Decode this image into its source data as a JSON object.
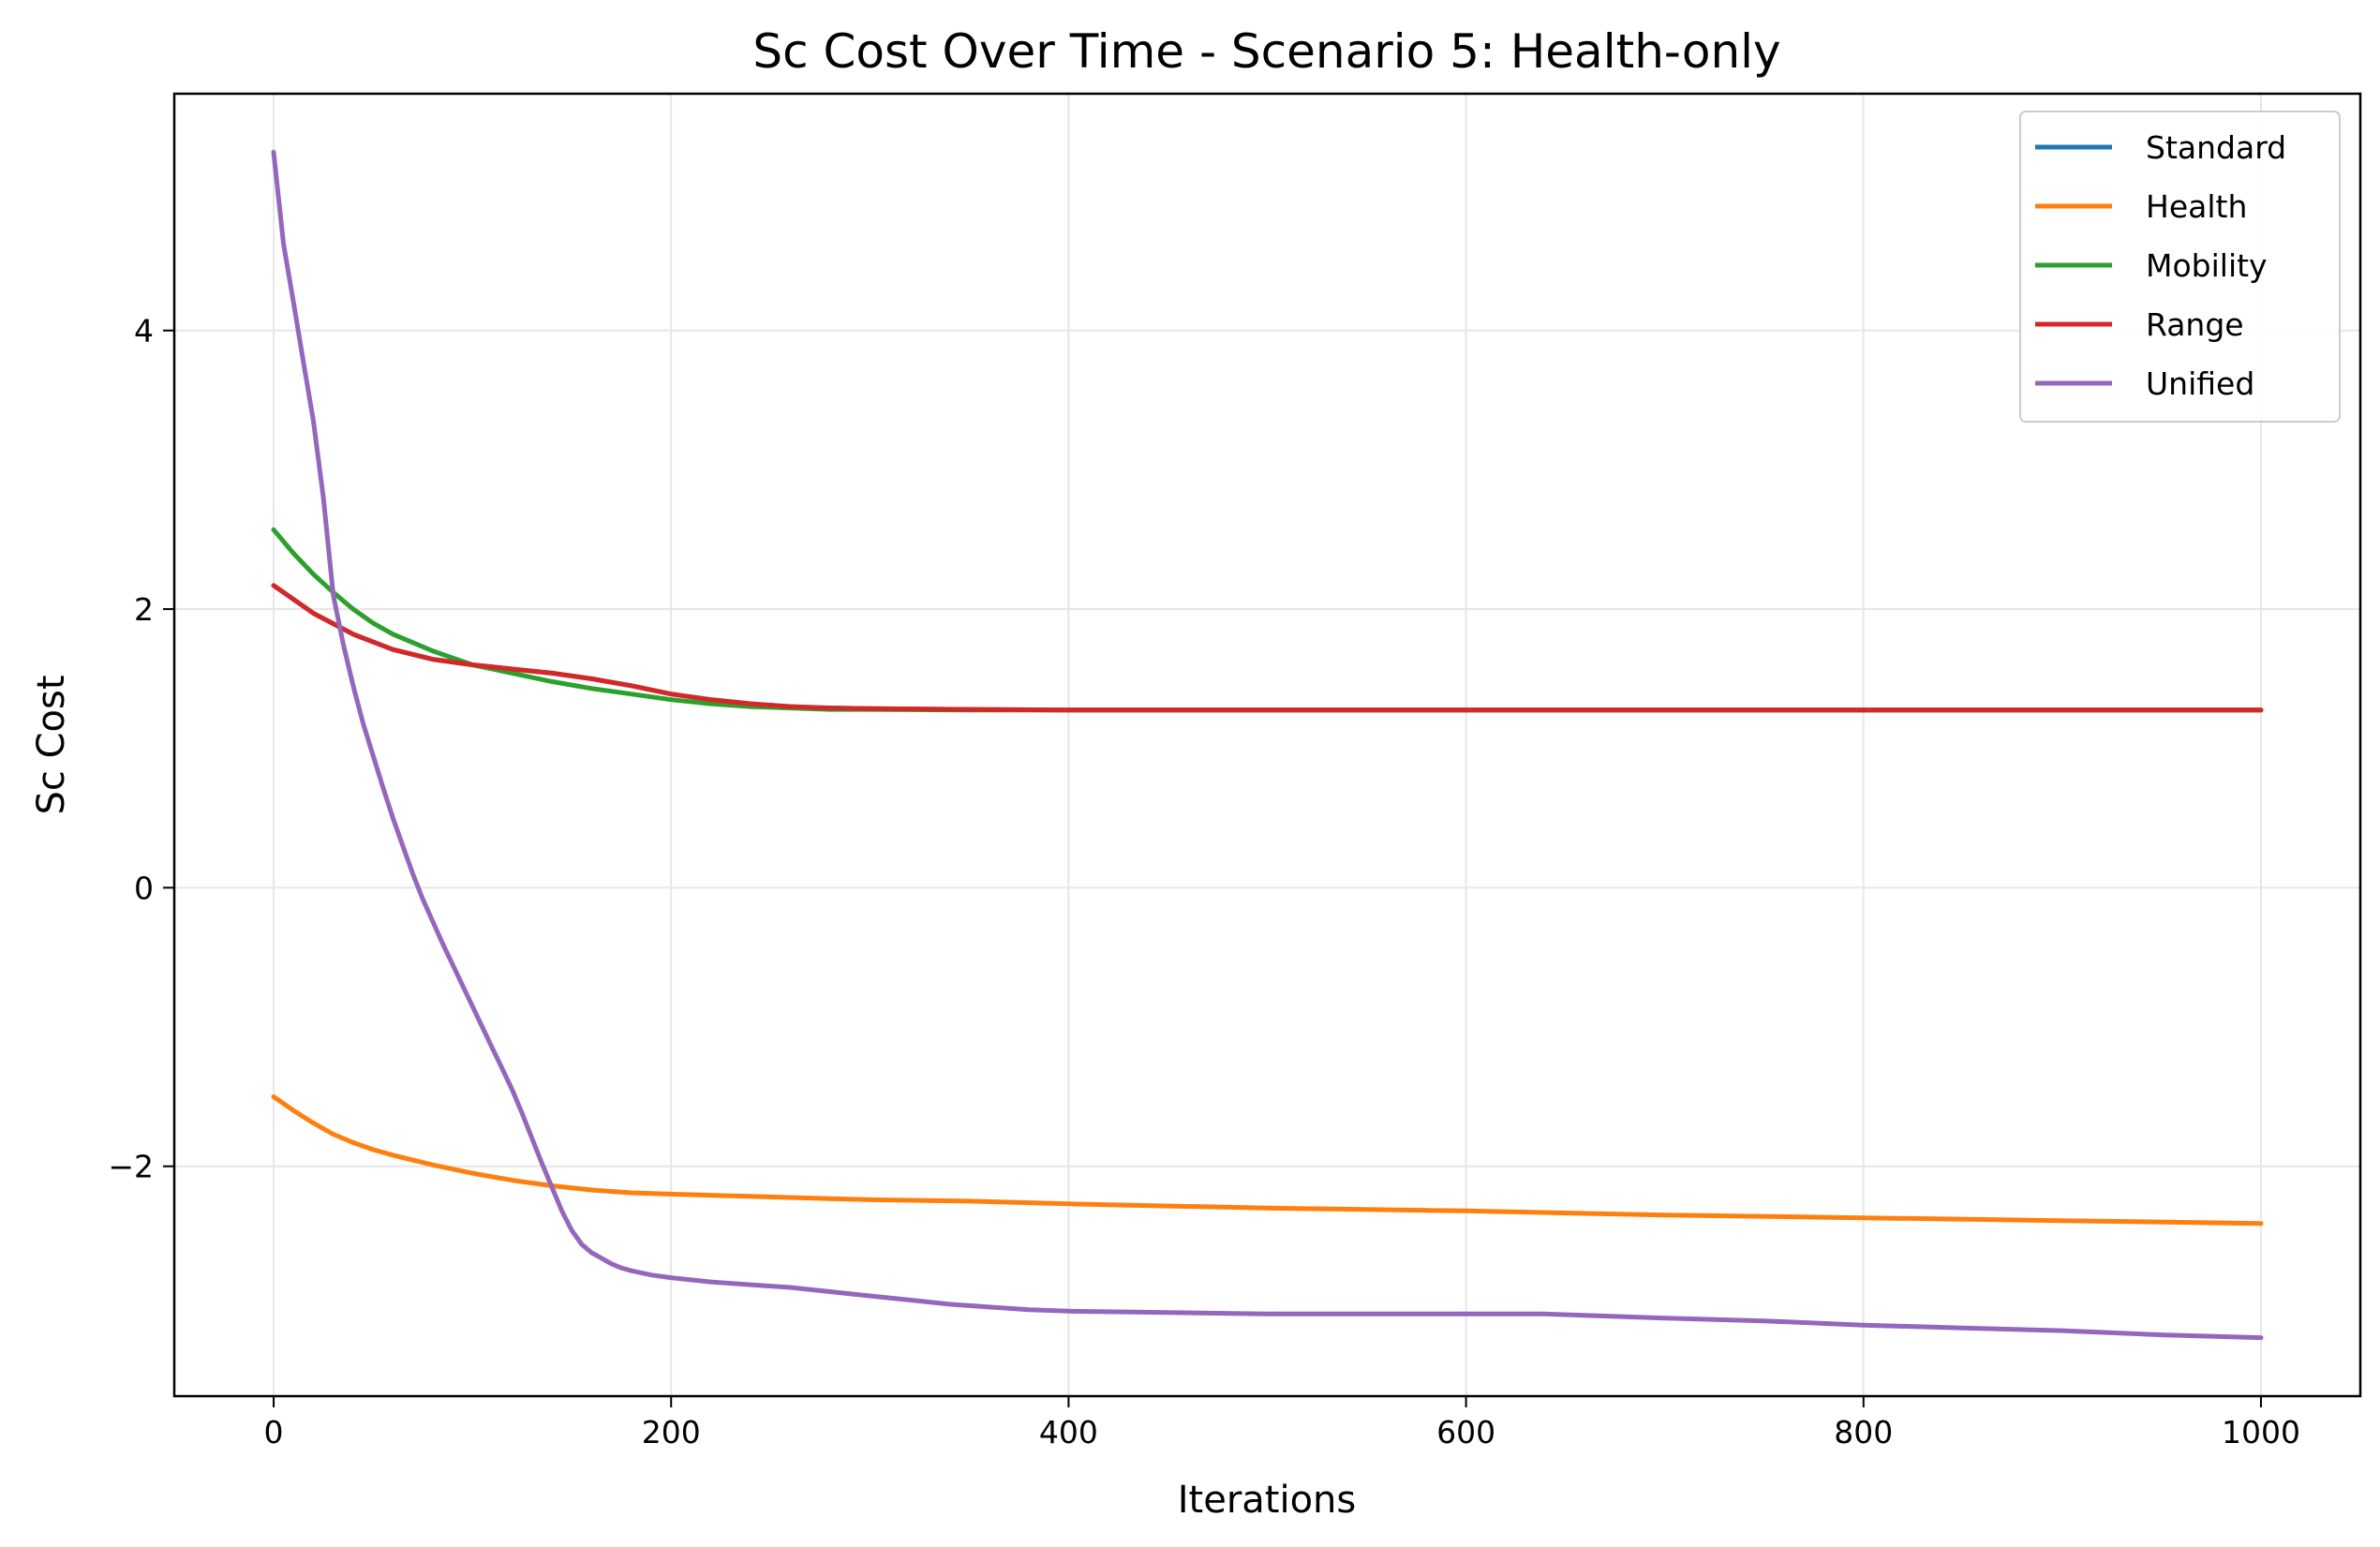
{
  "chart_data": {
    "type": "line",
    "title": "Sc Cost Over Time - Scenario 5: Health-only",
    "xlabel": "Iterations",
    "ylabel": "Sc Cost",
    "xlim": [
      -50,
      1050
    ],
    "ylim": [
      -3.65,
      5.7
    ],
    "xticks": [
      0,
      200,
      400,
      600,
      800,
      1000
    ],
    "xtick_labels": [
      "0",
      "200",
      "400",
      "600",
      "800",
      "1000"
    ],
    "yticks": [
      -2,
      0,
      2,
      4
    ],
    "ytick_labels": [
      "−2",
      "0",
      "2",
      "4"
    ],
    "grid": true,
    "legend_position": "top-right",
    "series": [
      {
        "name": "Standard",
        "color": "#1f77b4",
        "x": [
          0,
          20,
          40,
          60,
          80,
          100,
          120,
          140,
          160,
          180,
          200,
          220,
          240,
          260,
          280,
          300,
          350,
          400,
          500,
          600,
          700,
          800,
          900,
          1000
        ],
        "y": [
          2.17,
          1.97,
          1.82,
          1.71,
          1.64,
          1.6,
          1.57,
          1.54,
          1.5,
          1.45,
          1.39,
          1.35,
          1.32,
          1.3,
          1.29,
          1.285,
          1.28,
          1.275,
          1.275,
          1.275,
          1.275,
          1.275,
          1.275,
          1.275
        ]
      },
      {
        "name": "Health",
        "color": "#ff7f0e",
        "x": [
          0,
          10,
          20,
          30,
          40,
          50,
          60,
          80,
          100,
          120,
          140,
          160,
          180,
          200,
          250,
          300,
          350,
          400,
          500,
          600,
          700,
          800,
          900,
          1000
        ],
        "y": [
          -1.5,
          -1.6,
          -1.69,
          -1.77,
          -1.83,
          -1.88,
          -1.92,
          -1.99,
          -2.05,
          -2.1,
          -2.14,
          -2.17,
          -2.19,
          -2.2,
          -2.22,
          -2.24,
          -2.25,
          -2.27,
          -2.3,
          -2.32,
          -2.35,
          -2.37,
          -2.39,
          -2.41
        ]
      },
      {
        "name": "Mobility",
        "color": "#2ca02c",
        "x": [
          0,
          10,
          20,
          30,
          40,
          50,
          60,
          80,
          100,
          120,
          140,
          160,
          180,
          200,
          220,
          240,
          260,
          280,
          300,
          350,
          400,
          500,
          600,
          700,
          800,
          900,
          1000
        ],
        "y": [
          2.57,
          2.4,
          2.25,
          2.12,
          2.0,
          1.9,
          1.82,
          1.7,
          1.6,
          1.54,
          1.48,
          1.43,
          1.39,
          1.35,
          1.32,
          1.3,
          1.29,
          1.28,
          1.28,
          1.275,
          1.275,
          1.275,
          1.275,
          1.275,
          1.275,
          1.275,
          1.275
        ]
      },
      {
        "name": "Range",
        "color": "#d62728",
        "x": [
          0,
          20,
          40,
          60,
          80,
          100,
          120,
          140,
          160,
          180,
          200,
          220,
          240,
          260,
          280,
          300,
          350,
          400,
          500,
          600,
          700,
          800,
          900,
          1000
        ],
        "y": [
          2.17,
          1.97,
          1.82,
          1.71,
          1.64,
          1.6,
          1.57,
          1.54,
          1.5,
          1.45,
          1.39,
          1.35,
          1.32,
          1.3,
          1.29,
          1.285,
          1.28,
          1.275,
          1.275,
          1.275,
          1.275,
          1.275,
          1.275,
          1.275
        ]
      },
      {
        "name": "Unified",
        "color": "#9467bd",
        "x": [
          0,
          5,
          10,
          15,
          20,
          25,
          30,
          35,
          40,
          45,
          50,
          55,
          60,
          65,
          70,
          75,
          80,
          85,
          90,
          95,
          100,
          105,
          110,
          115,
          120,
          125,
          130,
          135,
          140,
          145,
          150,
          155,
          160,
          165,
          170,
          175,
          180,
          190,
          200,
          220,
          240,
          260,
          280,
          300,
          320,
          340,
          360,
          380,
          400,
          450,
          500,
          550,
          600,
          640,
          700,
          750,
          800,
          850,
          900,
          950,
          1000
        ],
        "y": [
          5.28,
          4.62,
          4.2,
          3.77,
          3.35,
          2.8,
          2.1,
          1.75,
          1.45,
          1.18,
          0.95,
          0.72,
          0.5,
          0.3,
          0.1,
          -0.08,
          -0.24,
          -0.4,
          -0.55,
          -0.7,
          -0.85,
          -1.0,
          -1.15,
          -1.3,
          -1.45,
          -1.62,
          -1.8,
          -1.98,
          -2.15,
          -2.32,
          -2.46,
          -2.56,
          -2.62,
          -2.66,
          -2.7,
          -2.73,
          -2.75,
          -2.78,
          -2.8,
          -2.83,
          -2.85,
          -2.87,
          -2.9,
          -2.93,
          -2.96,
          -2.99,
          -3.01,
          -3.03,
          -3.04,
          -3.05,
          -3.06,
          -3.06,
          -3.06,
          -3.06,
          -3.09,
          -3.11,
          -3.14,
          -3.16,
          -3.18,
          -3.21,
          -3.23
        ]
      }
    ]
  }
}
